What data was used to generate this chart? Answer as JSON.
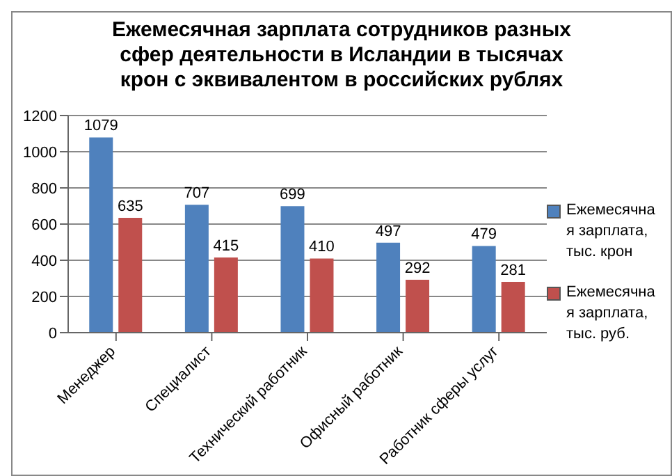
{
  "chart_data": {
    "type": "bar",
    "title": "Ежемесячная зарплата сотрудников разных сфер деятельности в Исландии в тысячах крон с эквивалентом в российских рублях",
    "categories": [
      "Менеджер",
      "Специалист",
      "Технический работник",
      "Офисный работник",
      "Работник сферы услуг"
    ],
    "series": [
      {
        "name": "Ежемесячная зарплата, тыс. крон",
        "color": "#4f81bd",
        "values": [
          1079,
          707,
          699,
          497,
          479
        ]
      },
      {
        "name": "Ежемесячная зарплата, тыс. руб.",
        "color": "#c0504d",
        "values": [
          635,
          415,
          410,
          292,
          281
        ]
      }
    ],
    "ylim": [
      0,
      1200
    ],
    "yticks": [
      0,
      200,
      400,
      600,
      800,
      1000,
      1200
    ],
    "grid": "y",
    "legend": "right",
    "data_labels": true
  }
}
